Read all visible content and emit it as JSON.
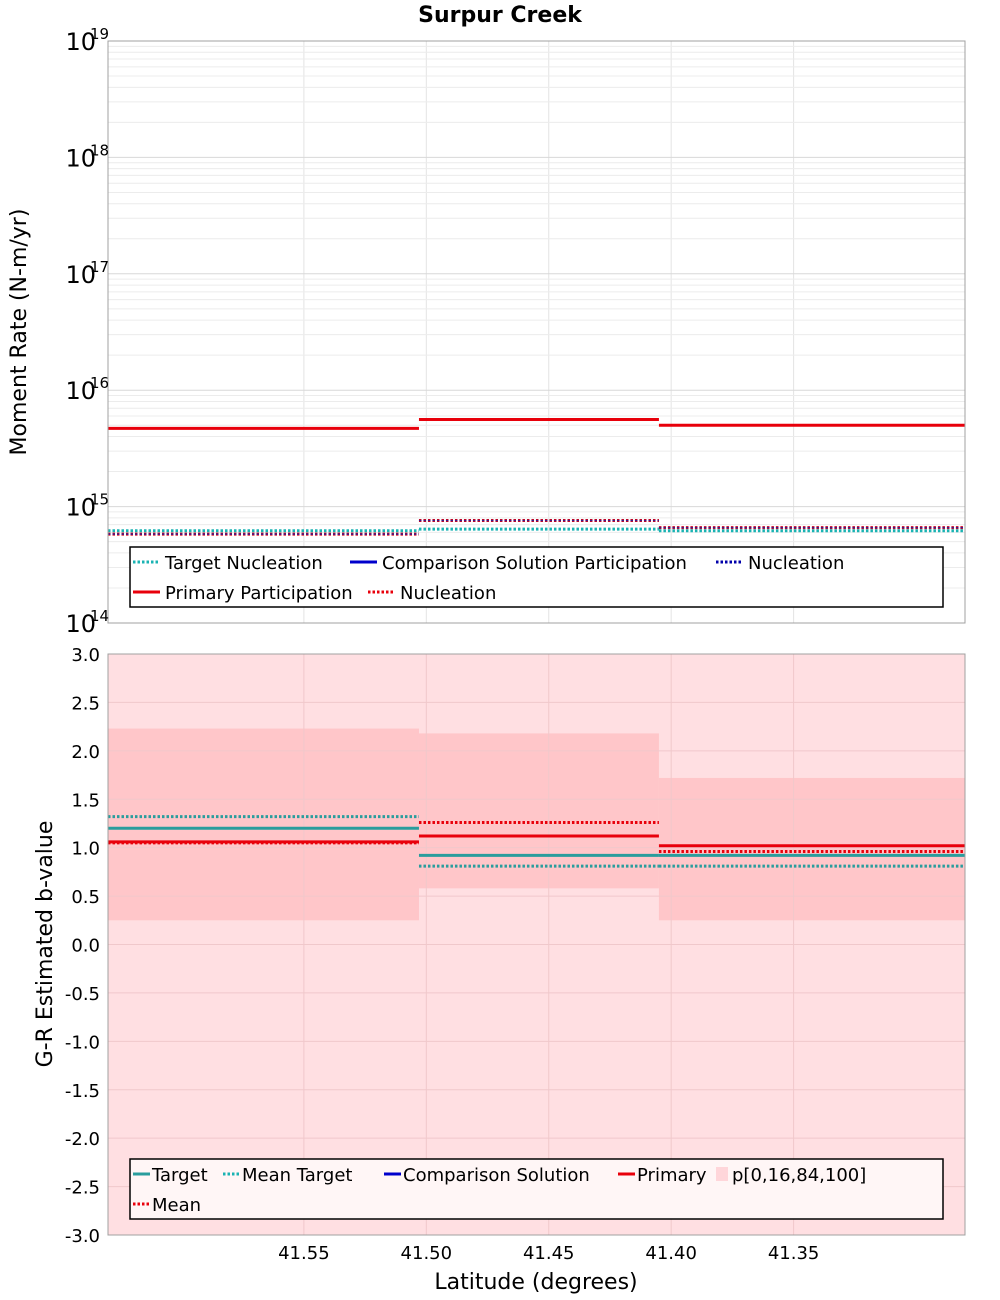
{
  "chart_data": [
    {
      "type": "line",
      "title": "Surpur Creek",
      "ylabel": "Moment Rate (N-m/yr)",
      "yscale": "log",
      "ylim": [
        100000000000000.0,
        1e+19
      ],
      "xlim": [
        41.63,
        41.28
      ],
      "x_inverted": true,
      "yticks": [
        {
          "base": "10",
          "exp": "19",
          "value": 1e+19
        },
        {
          "base": "10",
          "exp": "18",
          "value": 1e+18
        },
        {
          "base": "10",
          "exp": "17",
          "value": 1e+17
        },
        {
          "base": "10",
          "exp": "16",
          "value": 1e+16
        },
        {
          "base": "10",
          "exp": "15",
          "value": 1000000000000000.0
        },
        {
          "base": "10",
          "exp": "14",
          "value": 100000000000000.0
        }
      ],
      "grid": true,
      "legend_position": "bottom",
      "legend": [
        {
          "label": "Target Nucleation",
          "color": "#1ab3b3",
          "dash": "dotted"
        },
        {
          "label": "Comparison Solution Participation",
          "color": "#0000cc",
          "dash": "solid"
        },
        {
          "label": "Nucleation",
          "color": "#0000aa",
          "dash": "dotted"
        },
        {
          "label": "Primary Participation",
          "color": "#e8000b",
          "dash": "solid"
        },
        {
          "label": "Nucleation",
          "color": "#e8000b",
          "dash": "dotted"
        }
      ],
      "series": [
        {
          "segments": [
            [
              41.63,
              41.503,
              4700000000000000.0
            ],
            [
              41.503,
              41.405,
              5600000000000000.0
            ],
            [
              41.405,
              41.28,
              5000000000000000.0
            ]
          ],
          "color": "#e8000b",
          "dash": "solid",
          "width": 3
        },
        {
          "segments": [
            [
              41.63,
              41.503,
              580000000000000.0
            ],
            [
              41.503,
              41.405,
              760000000000000.0
            ],
            [
              41.405,
              41.28,
              660000000000000.0
            ]
          ],
          "color": "#e8000b",
          "dash": "dotted",
          "width": 3
        },
        {
          "segments": [
            [
              41.63,
              41.503,
              620000000000000.0
            ],
            [
              41.503,
              41.405,
              640000000000000.0
            ],
            [
              41.405,
              41.28,
              620000000000000.0
            ]
          ],
          "color": "#1ab3b3",
          "dash": "dotted",
          "width": 3
        },
        {
          "segments": [
            [
              41.63,
              41.503,
              580000000000000.0
            ],
            [
              41.503,
              41.405,
              760000000000000.0
            ],
            [
              41.405,
              41.28,
              660000000000000.0
            ]
          ],
          "color": "#3a1a8a",
          "dash": "dotted",
          "width": 1.5
        }
      ]
    },
    {
      "type": "line",
      "xlabel": "Latitude (degrees)",
      "ylabel": "G-R Estimated b-value",
      "ylim": [
        -3.0,
        3.0
      ],
      "xlim": [
        41.63,
        41.28
      ],
      "x_inverted": true,
      "xticks": [
        "41.55",
        "41.50",
        "41.45",
        "41.40",
        "41.35"
      ],
      "xtick_values": [
        41.55,
        41.5,
        41.45,
        41.4,
        41.35
      ],
      "yticks": [
        "3.0",
        "2.5",
        "2.0",
        "1.5",
        "1.0",
        "0.5",
        "0.0",
        "-0.5",
        "-1.0",
        "-1.5",
        "-2.0",
        "-2.5",
        "-3.0"
      ],
      "ytick_values": [
        3.0,
        2.5,
        2.0,
        1.5,
        1.0,
        0.5,
        0.0,
        -0.5,
        -1.0,
        -1.5,
        -2.0,
        -2.5,
        -3.0
      ],
      "grid": true,
      "legend_position": "bottom",
      "legend": [
        {
          "label": "Target",
          "color": "#2a9d9d",
          "dash": "solid"
        },
        {
          "label": "Mean Target",
          "color": "#1ab3b3",
          "dash": "dotted"
        },
        {
          "label": "Comparison Solution",
          "color": "#0000cc",
          "dash": "solid"
        },
        {
          "label": "Primary",
          "color": "#e8000b",
          "dash": "solid"
        },
        {
          "label": "p[0,16,84,100]",
          "color": "#ffd6da",
          "dash": "band"
        },
        {
          "label": "Mean",
          "color": "#e8000b",
          "dash": "dotted"
        }
      ],
      "bands_outer": {
        "color": "#ffdfe2",
        "segments": [
          [
            41.63,
            41.28,
            -3.0,
            3.0
          ]
        ]
      },
      "bands_inner": {
        "color": "#ffc6c9",
        "segments": [
          [
            41.63,
            41.503,
            0.25,
            2.23
          ],
          [
            41.503,
            41.405,
            0.58,
            2.18
          ],
          [
            41.405,
            41.28,
            0.25,
            1.72
          ]
        ]
      },
      "series": [
        {
          "segments": [
            [
              41.63,
              41.503,
              1.32
            ],
            [
              41.503,
              41.405,
              0.81
            ],
            [
              41.405,
              41.28,
              0.81
            ]
          ],
          "color": "#2a9d9d",
          "dash": "dotted",
          "width": 3
        },
        {
          "segments": [
            [
              41.63,
              41.503,
              1.2
            ],
            [
              41.503,
              41.405,
              0.92
            ],
            [
              41.405,
              41.28,
              0.92
            ]
          ],
          "color": "#2a9d9d",
          "dash": "solid",
          "width": 3
        },
        {
          "segments": [
            [
              41.63,
              41.503,
              1.05
            ],
            [
              41.503,
              41.405,
              1.26
            ],
            [
              41.405,
              41.28,
              0.96
            ]
          ],
          "color": "#e8000b",
          "dash": "dotted",
          "width": 3
        },
        {
          "segments": [
            [
              41.63,
              41.503,
              1.06
            ],
            [
              41.503,
              41.405,
              1.12
            ],
            [
              41.405,
              41.28,
              1.02
            ]
          ],
          "color": "#e8000b",
          "dash": "solid",
          "width": 3
        }
      ]
    }
  ]
}
